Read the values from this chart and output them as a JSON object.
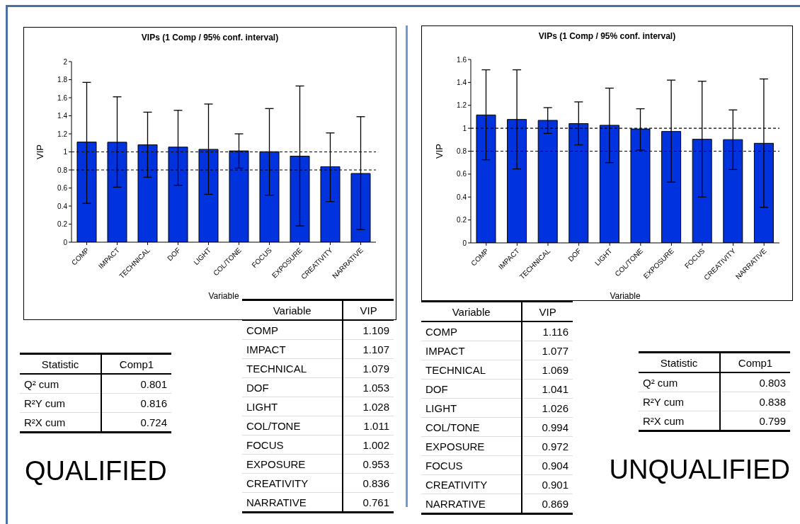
{
  "chart_data": [
    {
      "type": "bar",
      "title": "VIPs (1 Comp / 95% conf. interval)",
      "xlabel": "Variable",
      "ylabel": "VIP",
      "categories": [
        "COMP",
        "IMPACT",
        "TECHNICAL",
        "DOF",
        "LIGHT",
        "COL/TONE",
        "FOCUS",
        "EXPOSURE",
        "CREATIVITY",
        "NARRATIVE"
      ],
      "values": [
        1.109,
        1.107,
        1.079,
        1.053,
        1.028,
        1.011,
        1.002,
        0.953,
        0.836,
        0.761
      ],
      "errors": [
        [
          0.43,
          1.77
        ],
        [
          0.61,
          1.61
        ],
        [
          0.72,
          1.44
        ],
        [
          0.63,
          1.46
        ],
        [
          0.53,
          1.53
        ],
        [
          0.82,
          1.2
        ],
        [
          0.52,
          1.48
        ],
        [
          0.18,
          1.73
        ],
        [
          0.45,
          1.21
        ],
        [
          0.14,
          1.39
        ]
      ],
      "color": "#0033dd",
      "ylim": [
        0,
        2
      ],
      "yticks": [
        0,
        0.2,
        0.4,
        0.6,
        0.8,
        1,
        1.2,
        1.4,
        1.6,
        1.8,
        2
      ],
      "ref_lines": [
        {
          "axis": "y",
          "value": 1,
          "color": "#000000",
          "line_style": "dashed"
        },
        {
          "axis": "y",
          "value": 0.8,
          "color": "#000000",
          "line_style": "dashed"
        }
      ]
    },
    {
      "type": "other",
      "xlabel": "Variable",
      "ylabel": "VIP",
      "categories": [
        "COMP",
        "IMPACT",
        "TECHNICAL",
        "DOF",
        "LIGHT",
        "COL/TONE",
        "FOCUS",
        "EXPOSURE",
        "CREATIVITY",
        "NARRATIVE"
      ],
      "values": [
        1.109,
        1.107,
        1.079,
        1.053,
        1.028,
        1.011,
        1.002,
        0.953,
        0.836,
        0.761
      ],
      "data_labels": true
    },
    {
      "type": "other",
      "xlabel": "Statistic",
      "ylabel": "Comp1",
      "categories": [
        "Q² cum",
        "R²Y cum",
        "R²X cum"
      ],
      "values": [
        0.801,
        0.816,
        0.724
      ],
      "data_labels": true,
      "annotations": [
        "QUALIFIED"
      ]
    },
    {
      "type": "bar",
      "title": "VIPs (1 Comp / 95% conf. interval)",
      "xlabel": "Variable",
      "ylabel": "VIP",
      "categories": [
        "COMP",
        "IMPACT",
        "TECHNICAL",
        "DOF",
        "LIGHT",
        "COL/TONE",
        "EXPOSURE",
        "FOCUS",
        "CREATIVITY",
        "NARRATIVE"
      ],
      "values": [
        1.116,
        1.077,
        1.069,
        1.041,
        1.026,
        0.994,
        0.972,
        0.904,
        0.901,
        0.869
      ],
      "errors": [
        [
          0.725,
          1.51
        ],
        [
          0.645,
          1.51
        ],
        [
          0.955,
          1.18
        ],
        [
          0.855,
          1.23
        ],
        [
          0.7,
          1.35
        ],
        [
          0.81,
          1.17
        ],
        [
          0.53,
          1.42
        ],
        [
          0.4,
          1.41
        ],
        [
          0.64,
          1.16
        ],
        [
          0.31,
          1.43
        ]
      ],
      "color": "#0033dd",
      "ylim": [
        0,
        1.6
      ],
      "yticks": [
        0,
        0.2,
        0.4,
        0.6,
        0.8,
        1,
        1.2,
        1.4,
        1.6
      ],
      "ref_lines": [
        {
          "axis": "y",
          "value": 1,
          "color": "#000000",
          "line_style": "dashed"
        },
        {
          "axis": "y",
          "value": 0.8,
          "color": "#000000",
          "line_style": "dashed"
        }
      ]
    },
    {
      "type": "other",
      "xlabel": "Variable",
      "ylabel": "VIP",
      "categories": [
        "COMP",
        "IMPACT",
        "TECHNICAL",
        "DOF",
        "LIGHT",
        "COL/TONE",
        "EXPOSURE",
        "FOCUS",
        "CREATIVITY",
        "NARRATIVE"
      ],
      "values": [
        1.116,
        1.077,
        1.069,
        1.041,
        1.026,
        0.994,
        0.972,
        0.904,
        0.901,
        0.869
      ],
      "data_labels": true
    },
    {
      "type": "other",
      "xlabel": "Statistic",
      "ylabel": "Comp1",
      "categories": [
        "Q² cum",
        "R²Y cum",
        "R²X cum"
      ],
      "values": [
        0.803,
        0.838,
        0.799
      ],
      "data_labels": true,
      "annotations": [
        "UNQUALIFIED"
      ]
    }
  ]
}
